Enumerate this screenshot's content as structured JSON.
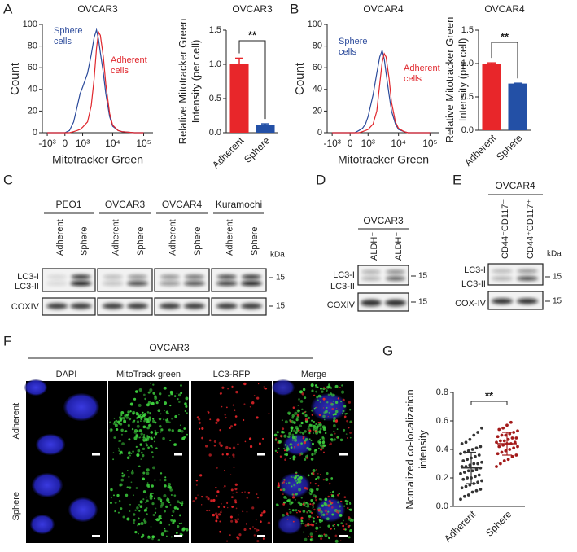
{
  "panel_labels": [
    "A",
    "B",
    "C",
    "D",
    "E",
    "F",
    "G"
  ],
  "chart_data": [
    {
      "type": "line",
      "title": "OVCAR3",
      "xlabel": "Mitotracker Green",
      "ylabel": "Count",
      "xscale": "biexponential",
      "x": [
        -1000,
        0,
        200,
        400,
        600,
        800,
        1000,
        1500,
        2000,
        2500,
        3000,
        3500,
        4000,
        5000,
        6000,
        8000,
        10000,
        15000,
        20000,
        50000,
        100000
      ],
      "series": [
        {
          "name": "Sphere cells",
          "color": "#2b4a9b",
          "values": [
            0,
            0,
            2,
            10,
            24,
            36,
            42,
            55,
            72,
            88,
            95,
            86,
            74,
            55,
            36,
            15,
            6,
            2,
            1,
            0,
            0
          ]
        },
        {
          "name": "Adherent cells",
          "color": "#e0262c",
          "values": [
            0,
            0,
            0,
            1,
            2,
            3,
            5,
            10,
            25,
            50,
            78,
            93,
            90,
            70,
            45,
            18,
            7,
            2,
            1,
            0,
            0
          ]
        }
      ],
      "xlim": [
        -1500,
        200000
      ],
      "xticks": [
        {
          "value": -1000,
          "label": "-10³"
        },
        0,
        {
          "value": 1000,
          "label": "10³"
        },
        {
          "value": 10000,
          "label": "10⁴"
        },
        {
          "value": 100000,
          "label": "10⁵"
        }
      ],
      "ylim": [
        0,
        100
      ],
      "yticks": [
        0,
        20,
        40,
        60,
        80,
        100
      ]
    },
    {
      "type": "bar",
      "title": "OVCAR3",
      "ylabel": "Relative Mitotracker Green Intensity (per cell)",
      "categories": [
        "Adherent",
        "Sphere"
      ],
      "values": [
        1.0,
        0.11
      ],
      "errors": [
        0.09,
        0.02
      ],
      "colors": [
        "#e8262a",
        "#2350a6"
      ],
      "annotation": "**",
      "ylim": [
        0,
        1.5
      ],
      "yticks": [
        {
          "value": 0,
          "label": "0.0"
        },
        0.5,
        {
          "value": 1,
          "label": "1.0"
        },
        1.5
      ]
    },
    {
      "type": "line",
      "title": "OVCAR4",
      "xlabel": "Mitotracker Green",
      "ylabel": "Count",
      "xscale": "biexponential",
      "x": [
        -1000,
        0,
        200,
        400,
        600,
        800,
        1000,
        1500,
        2000,
        2500,
        3000,
        3500,
        4000,
        5000,
        6000,
        8000,
        10000,
        15000,
        20000,
        50000,
        100000
      ],
      "series": [
        {
          "name": "Sphere cells",
          "color": "#2b4a9b",
          "values": [
            0,
            0,
            0,
            2,
            4,
            8,
            15,
            35,
            55,
            70,
            76,
            68,
            55,
            35,
            20,
            8,
            3,
            1,
            0,
            0,
            0
          ]
        },
        {
          "name": "Adherent cells",
          "color": "#e0262c",
          "values": [
            0,
            0,
            0,
            0,
            1,
            2,
            3,
            8,
            20,
            45,
            65,
            73,
            70,
            50,
            28,
            10,
            4,
            1,
            0,
            0,
            0
          ]
        }
      ],
      "xlim": [
        -1500,
        200000
      ],
      "xticks": [
        {
          "value": -1000,
          "label": "-10³"
        },
        0,
        {
          "value": 1000,
          "label": "10³"
        },
        {
          "value": 10000,
          "label": "10⁴"
        },
        {
          "value": 100000,
          "label": "10⁵"
        }
      ],
      "ylim": [
        0,
        100
      ],
      "yticks": [
        0,
        20,
        40,
        60,
        80,
        100
      ]
    },
    {
      "type": "bar",
      "title": "OVCAR4",
      "ylabel": "Relative Mitotracker  Green Intensity (per cell)",
      "categories": [
        "Adherent",
        "Sphere"
      ],
      "values": [
        1.0,
        0.7
      ],
      "errors": [
        0.01,
        0.005
      ],
      "colors": [
        "#e8262a",
        "#2350a6"
      ],
      "annotation": "**",
      "ylim": [
        0,
        1.5
      ],
      "yticks": [
        {
          "value": 0,
          "label": "0.0"
        },
        0.5,
        {
          "value": 1,
          "label": "1.0"
        },
        1.5
      ]
    },
    {
      "type": "strip",
      "ylabel": "Nomalized co-localization intensity",
      "categories": [
        "Adherent",
        "Sphere"
      ],
      "colors": [
        "#333333",
        "#a31a1a"
      ],
      "values": [
        [
          0.05,
          0.07,
          0.08,
          0.1,
          0.11,
          0.12,
          0.13,
          0.14,
          0.15,
          0.16,
          0.17,
          0.18,
          0.19,
          0.2,
          0.2,
          0.21,
          0.22,
          0.23,
          0.24,
          0.25,
          0.25,
          0.26,
          0.27,
          0.28,
          0.28,
          0.29,
          0.3,
          0.3,
          0.31,
          0.32,
          0.33,
          0.34,
          0.35,
          0.36,
          0.37,
          0.38,
          0.39,
          0.4,
          0.41,
          0.42,
          0.44,
          0.45,
          0.47,
          0.5,
          0.52,
          0.55
        ],
        [
          0.28,
          0.3,
          0.32,
          0.33,
          0.35,
          0.36,
          0.37,
          0.38,
          0.39,
          0.4,
          0.41,
          0.42,
          0.42,
          0.43,
          0.44,
          0.44,
          0.45,
          0.45,
          0.46,
          0.46,
          0.47,
          0.48,
          0.48,
          0.49,
          0.5,
          0.5,
          0.51,
          0.52,
          0.53,
          0.54,
          0.55,
          0.57,
          0.59
        ]
      ],
      "means": [
        0.27,
        0.44
      ],
      "sd": [
        0.11,
        0.08
      ],
      "annotation": "**",
      "ylim": [
        0,
        0.8
      ],
      "yticks": [
        {
          "value": 0,
          "label": "0.0"
        },
        0.2,
        0.4,
        0.6,
        0.8
      ]
    }
  ],
  "blot_c": {
    "groups": [
      "PEO1",
      "OVCAR3",
      "OVCAR4",
      "Kuramochi"
    ],
    "lanes": [
      "Adherent",
      "Sphere",
      "Adherent",
      "Sphere",
      "Adherent",
      "Sphere",
      "Adherent",
      "Sphere"
    ],
    "rows": [
      "LC3-I",
      "LC3-II",
      "COXIV"
    ],
    "unit": "kDa",
    "markers": [
      "15",
      "15"
    ]
  },
  "blot_d": {
    "title": "OVCAR3",
    "lanes": [
      "ALDH⁻",
      "ALDH⁺"
    ],
    "rows": [
      "LC3-I",
      "LC3-II",
      "COXIV"
    ],
    "markers": [
      "15",
      "15"
    ]
  },
  "blot_e": {
    "title": "OVCAR4",
    "lanes": [
      "CD44⁻CD117⁻",
      "CD44⁺CD117⁺"
    ],
    "unit": "kDa",
    "rows": [
      "LC3-I",
      "LC3-II",
      "COX-IV"
    ],
    "markers": [
      "15",
      "15"
    ]
  },
  "microscopy_f": {
    "title": "OVCAR3",
    "columns": [
      "DAPI",
      "MitoTrack green",
      "LC3-RFP",
      "Merge"
    ],
    "rows": [
      "Adherent",
      "Sphere"
    ]
  }
}
